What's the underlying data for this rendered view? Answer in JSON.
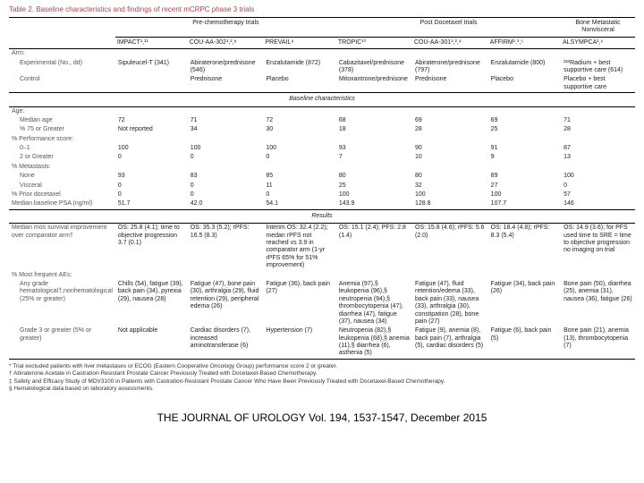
{
  "title": "Table 2. Baseline characteristics and findings of recent mCRPC phase 3 trials",
  "groups": {
    "g1": "Pre-chemotherapy trials",
    "g2": "Post Docetaxel trials",
    "g3": "Bone Metastatic Nonvisceral"
  },
  "trials": {
    "t1": "IMPACT¹,¹¹",
    "t2": "COU-AA-302¹,²,⁸",
    "t3": "PREVAIL⁹",
    "t4": "TROPIC¹⁰",
    "t5": "COU-AA-301¹,²,⁴",
    "t6": "AFFIRM¹,³,⁵",
    "t7": "ALSYMPCA¹,⁶"
  },
  "arm": {
    "label": "Arm:",
    "exp_lbl": "Experimental (No., dd)",
    "ctrl_lbl": "Control",
    "t1e": "Sipuleucel-T (341)",
    "t1c": "",
    "t2e": "Abiraterone/prednisone (546)",
    "t2c": "Prednisone",
    "t3e": "Enzalutamide (872)",
    "t3c": "Placebo",
    "t4e": "Cabazitaxel/prednisone (378)",
    "t4c": "Mitoxantrone/prednisone",
    "t5e": "Abiraterone/prednisone (797)",
    "t5c": "Prednisone",
    "t6e": "Enzalutamide (800)",
    "t6c": "Placebo",
    "t7e": "²²³Radium + best supportive care (614)",
    "t7c": "Placebo + best supportive care"
  },
  "sec_baseline": "Baseline characteristics",
  "age_lbl": "Age:",
  "median_age_lbl": "Median age",
  "pct75_lbl": "% 75 or Greater",
  "age": {
    "t1m": "72",
    "t1p": "",
    "t2m": "71",
    "t2p": "34",
    "t3m": "72",
    "t3p": "30",
    "t4m": "68",
    "t4p": "18",
    "t5m": "69",
    "t5p": "28",
    "t6m": "69",
    "t6p": "25",
    "t7m": "71",
    "t7p": "28"
  },
  "perf_lbl": "% Performance score:",
  "p01_lbl": "0–1",
  "p2_lbl": "2 or Greater",
  "perf": {
    "t1a": "100",
    "t1b": "0",
    "t2a": "100",
    "t2b": "0",
    "t3a": "100",
    "t3b": "0",
    "t4a": "93",
    "t4b": "7",
    "t5a": "90",
    "t5b": "10",
    "t6a": "91",
    "t6b": "9",
    "t7a": "87",
    "t7b": "13"
  },
  "met_lbl": "% Metastasis:",
  "none_lbl": "None",
  "visc_lbl": "Visceral",
  "met": {
    "t1n": "93",
    "t1v": "0",
    "t2n": "83",
    "t2v": "0",
    "t3n": "85",
    "t3v": "11",
    "t4n": "80",
    "t4v": "25",
    "t5n": "80",
    "t5v": "32",
    "t6n": "89",
    "t6v": "27",
    "t7n": "100",
    "t7v": "0"
  },
  "prior_lbl": "% Prior docetaxel",
  "prior": {
    "t1": "0",
    "t2": "0",
    "t3": "0",
    "t4": "100",
    "t5": "100",
    "t6": "100",
    "t7": "57"
  },
  "psa_lbl": "Median baseline PSA (ng/ml)",
  "psa": {
    "t1": "51.7",
    "t2": "42.0",
    "t3": "54.1",
    "t4": "143.9",
    "t5": "128.8",
    "t6": "107.7",
    "t7": "146"
  },
  "sec_results": "Results",
  "mos_lbl": "Median mos survival improvement over comparator arm†",
  "mos": {
    "t1": "OS: 25.8 (4.1); time to objective progression 3.7 (0.1)",
    "t2": "OS: 35.3 (5.2); rPFS: 16.5 (8.3)",
    "t3": "Interim OS: 32.4 (2.2); medan rPFS not reached vs 3.9 in comparator arm (1-yr rPFS 65% for 51% improvement)",
    "t4": "OS: 15.1 (2.4); PFS: 2.8 (1.4)",
    "t5": "OS: 15.8 (4.6); rPFS: 5.6 (2.0)",
    "t6": "OS: 18.4 (4.8); rPFS: 8.3 (5.4)",
    "t7": "OS: 14.9 (3.6); for PFS used time to SRE = time to objective progression no imaging on trial"
  },
  "ae_lbl": "% Most frequent AEs:",
  "ae1_lbl": "Any grade hematological†,nonhematological (25% or greater)",
  "ae1": {
    "t1": "Chills (54), fatigue (39), back pain (34), pyrexia (29), nausea (28)",
    "t2": "Fatigue (47), bone pain (30), arthralgia (29), fluid retention (29), peripheral edema (26)",
    "t3": "Fatigue (36), back pain (27)",
    "t4": "Anemia (97),§ leukopenia (96),§ neutropenia (94),§ thrombocytopenia (47), diarrhea (47), fatigue (37), nausea (34)",
    "t5": "Fatigue (47), fluid retention/edema (33), back pain (33), nausea (33), arthralgia (30), constipation (28), bone pain (27)",
    "t6": "Fatigue (34), back pain (26)",
    "t7": "Bone pain (50), diarrhea (25), anemia (31), nausea (36), fatigue (26)"
  },
  "ae2_lbl": "Grade 3 or greater (5% or greater)",
  "ae2": {
    "t1": "Not applicable",
    "t2": "Cardiac disorders (7), increased aminotransferase (6)",
    "t3": "Hypertension (7)",
    "t4": "Neutropenia (82),§ leukopenia (68),§ anemia (11),§ diarrhea (6), asthenia (5)",
    "t5": "Fatigue (9), anemia (8), back pain (7), arthralgia (5), cardiac disorders (5)",
    "t6": "Fatigue (6), back pain (5)",
    "t7": "Bone pain (21), anemia (13), thrombocytopenia (7)"
  },
  "foot": {
    "a": "* Trial excluded patients with liver metastases or ECOG (Eastern Cooperative Oncology Group) performance score 2 or greater.",
    "b": "† Abiraterone Acetate in Castration-Resistant Prostate Cancer Previously Treated with Docetaxel-Based Chemotherapy.",
    "c": "‡ Safety and Efficacy Study of MDV3100 in Patients with Castration-Resistant Prostate Cancer Who Have Been Previously Treated with Docetaxel-Based Chemotherapy.",
    "d": "§ Hematological data based on laboratory assessments."
  },
  "citation": "THE JOURNAL OF UROLOGY Vol. 194, 1537-1547, December 2015"
}
